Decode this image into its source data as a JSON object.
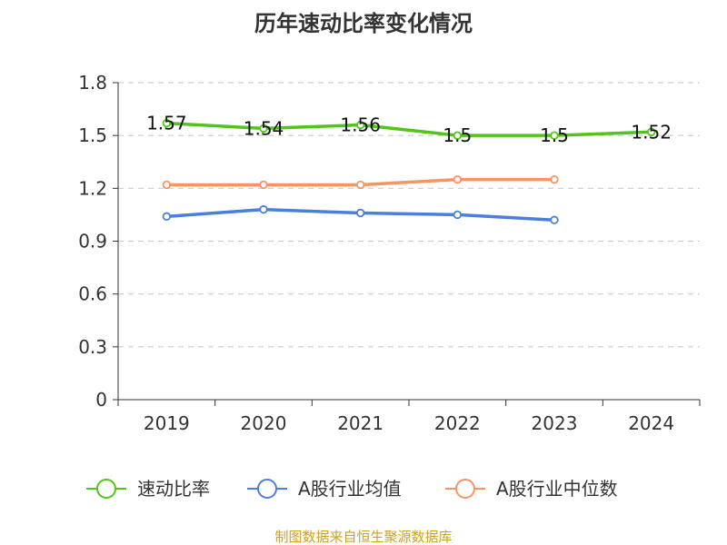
{
  "chart_data": {
    "type": "line",
    "title": "历年速动比率变化情况",
    "categories": [
      "2019",
      "2020",
      "2021",
      "2022",
      "2023",
      "2024"
    ],
    "y_ticks": [
      "0",
      "0.3",
      "0.6",
      "0.9",
      "1.2",
      "1.5",
      "1.8"
    ],
    "ylim": [
      0,
      1.8
    ],
    "grid": true,
    "legend_position": "bottom",
    "series": [
      {
        "name": "速动比率",
        "color": "#52c41a",
        "values": [
          1.57,
          1.54,
          1.56,
          1.5,
          1.5,
          1.52
        ],
        "labels": [
          "1.57",
          "1.54",
          "1.56",
          "1.5",
          "1.5",
          "1.52"
        ]
      },
      {
        "name": "A股行业均值",
        "color": "#4a7fdc",
        "values": [
          1.04,
          1.08,
          1.06,
          1.05,
          1.02,
          null
        ]
      },
      {
        "name": "A股行业中位数",
        "color": "#f59563",
        "values": [
          1.22,
          1.22,
          1.22,
          1.25,
          1.25,
          null
        ]
      }
    ],
    "source": "制图数据来自恒生聚源数据库"
  }
}
